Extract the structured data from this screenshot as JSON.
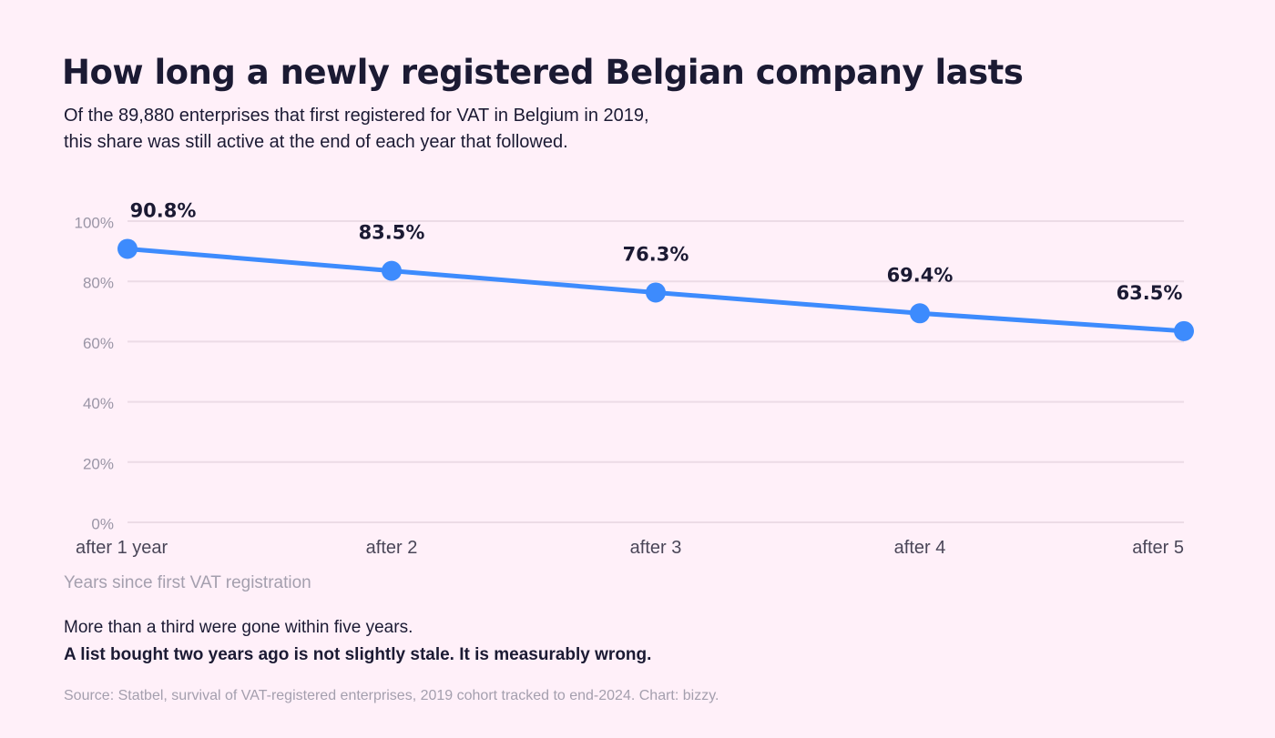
{
  "header": {
    "title": "How long a newly registered Belgian company lasts",
    "subtitle_line1": "Of the 89,880 enterprises that first registered for VAT in Belgium in 2019,",
    "subtitle_line2": "this share was still active at the end of each year that followed."
  },
  "chart_data": {
    "type": "line",
    "title": "How long a newly registered Belgian company lasts",
    "xlabel": "Years since first VAT registration",
    "ylabel": "",
    "categories": [
      "after 1 year",
      "after 2",
      "after 3",
      "after 4",
      "after 5"
    ],
    "values": [
      90.8,
      83.5,
      76.3,
      69.4,
      63.5
    ],
    "data_labels": [
      "90.8%",
      "83.5%",
      "76.3%",
      "69.4%",
      "63.5%"
    ],
    "ylim": [
      0,
      100
    ],
    "yticks": [
      0,
      20,
      40,
      60,
      80,
      100
    ],
    "ytick_labels": [
      "0%",
      "20%",
      "40%",
      "60%",
      "80%",
      "100%"
    ],
    "grid": true,
    "legend": "none",
    "colors": {
      "line": "#3d8bfd",
      "grid": "#ecdbe6",
      "background": "#fff0f9"
    }
  },
  "notes": {
    "line1": "More than a third were gone within five years.",
    "line2": "A list bought two years ago is not slightly stale. It is measurably wrong."
  },
  "footer": {
    "source": "Source: Statbel, survival of VAT-registered enterprises, 2019 cohort tracked to end-2024. Chart: bizzy."
  }
}
